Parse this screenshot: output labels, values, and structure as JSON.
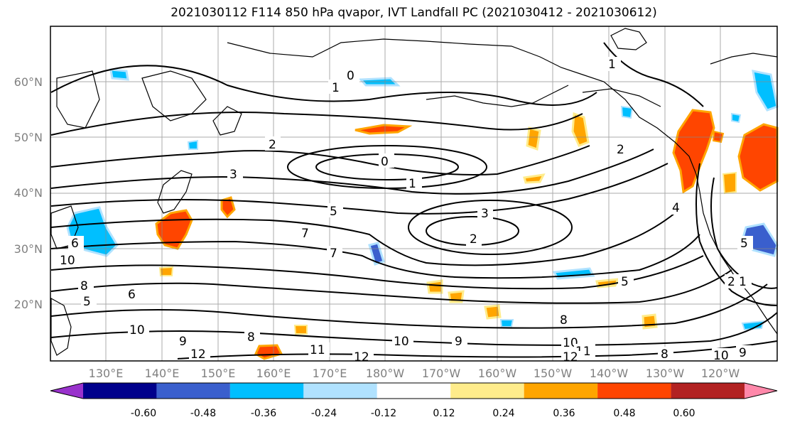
{
  "title": "2021030112 F114 850 hPa qvapor, IVT Landfall PC (2021030412 - 2021030612)",
  "lat_labels": [
    "60°N",
    "50°N",
    "40°N",
    "30°N",
    "20°N"
  ],
  "lon_labels": [
    "130°E",
    "140°E",
    "150°E",
    "160°E",
    "170°E",
    "180°W",
    "170°W",
    "160°W",
    "150°W",
    "140°W",
    "130°W",
    "120°W"
  ],
  "colorbar": {
    "colors": [
      "#9932cc",
      "#00008b",
      "#3a5fcd",
      "#00bfff",
      "#b0e2ff",
      "#ffffff",
      "#ffec8b",
      "#ffa500",
      "#ff4500",
      "#b22222",
      "#ff88aa"
    ],
    "tick_labels": [
      "-0.60",
      "-0.48",
      "-0.36",
      "-0.24",
      "-0.12",
      "0.12",
      "0.24",
      "0.36",
      "0.48",
      "0.60"
    ]
  },
  "contour_labels": [
    "0",
    "1",
    "2",
    "3",
    "0",
    "1",
    "2",
    "3",
    "5",
    "7",
    "7",
    "2",
    "5",
    "6",
    "8",
    "10",
    "5",
    "6",
    "10",
    "9",
    "8",
    "10",
    "9",
    "8",
    "12",
    "11",
    "12",
    "10",
    "11",
    "12",
    "10",
    "9",
    "8",
    "1",
    "2",
    "4",
    "5",
    "1"
  ]
}
